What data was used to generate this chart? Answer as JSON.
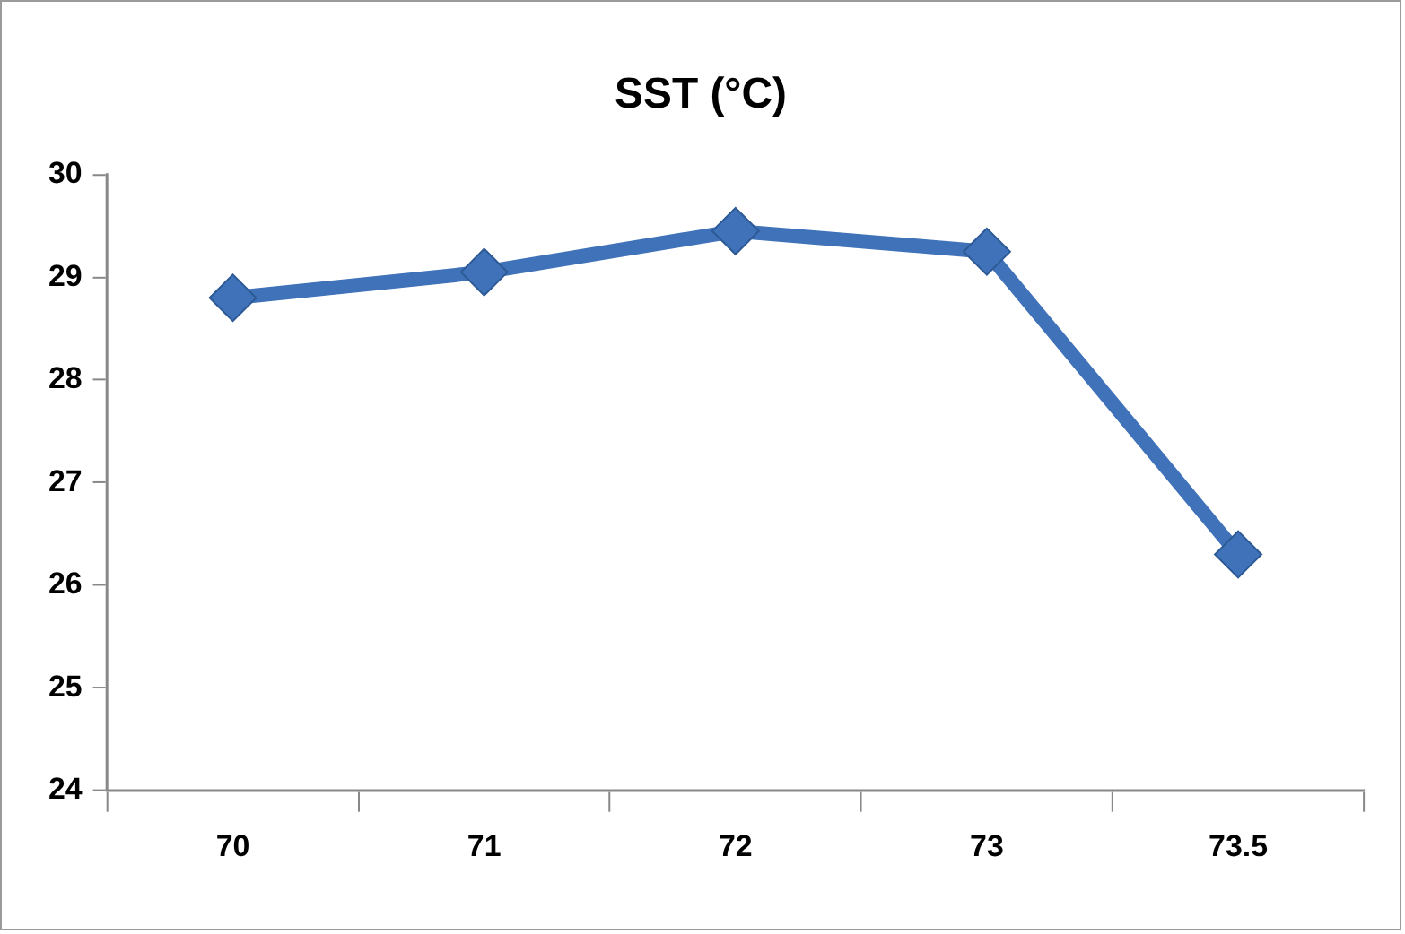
{
  "chart_data": {
    "type": "line",
    "title": "SST (°C)",
    "categories": [
      "70",
      "71",
      "72",
      "73",
      "73.5"
    ],
    "series": [
      {
        "color": "#3f72b8",
        "values": [
          28.8,
          29.05,
          29.45,
          29.25,
          26.3
        ]
      }
    ],
    "ylim": [
      24,
      30
    ],
    "yticks": [
      24,
      25,
      26,
      27,
      28,
      29,
      30
    ],
    "grid": false,
    "legend": false,
    "marker": "diamond",
    "line_style": "solid"
  }
}
